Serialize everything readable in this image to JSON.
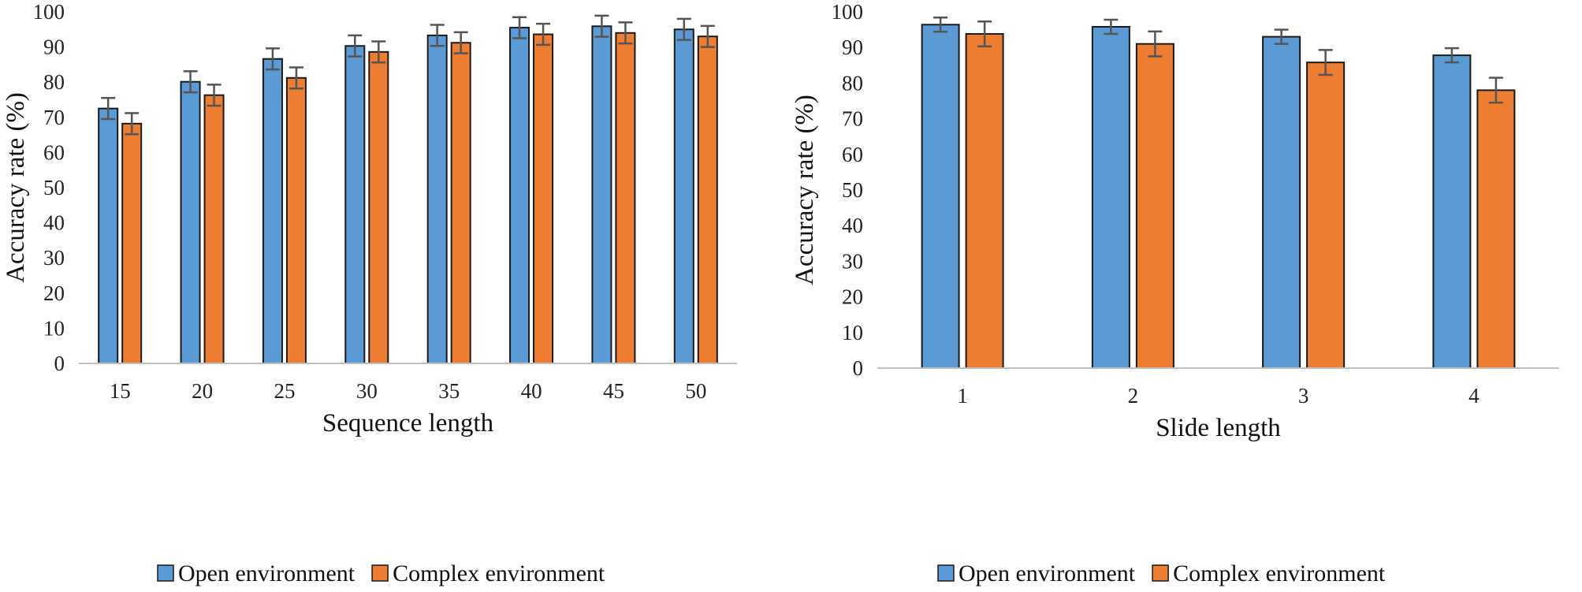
{
  "chart_data": [
    {
      "type": "bar",
      "id": "left",
      "xlabel": "Sequence length",
      "ylabel": "Accuracy rate (%)",
      "ylim": [
        0,
        100
      ],
      "yticks": [
        0,
        10,
        20,
        30,
        40,
        50,
        60,
        70,
        80,
        90,
        100
      ],
      "grid": false,
      "legend_position": "bottom",
      "categories": [
        "15",
        "20",
        "25",
        "30",
        "35",
        "40",
        "45",
        "50"
      ],
      "series": [
        {
          "name": "Open environment",
          "color": "#5B9BD5",
          "values": [
            72.5,
            80.1,
            86.6,
            90.3,
            93.3,
            95.5,
            95.9,
            95.0
          ],
          "errors": [
            3.0,
            3.0,
            3.0,
            3.0,
            3.0,
            3.0,
            3.0,
            3.0
          ]
        },
        {
          "name": "Complex environment",
          "color": "#ED7D31",
          "values": [
            68.2,
            76.3,
            81.2,
            88.6,
            91.2,
            93.6,
            94.0,
            93.0
          ],
          "errors": [
            3.0,
            3.0,
            3.0,
            3.0,
            3.0,
            3.0,
            3.0,
            3.0
          ]
        }
      ]
    },
    {
      "type": "bar",
      "id": "right",
      "xlabel": "Slide length",
      "ylabel": "Accuracy rate (%)",
      "ylim": [
        0,
        100
      ],
      "yticks": [
        0,
        10,
        20,
        30,
        40,
        50,
        60,
        70,
        80,
        90,
        100
      ],
      "grid": false,
      "legend_position": "bottom",
      "categories": [
        "1",
        "2",
        "3",
        "4"
      ],
      "series": [
        {
          "name": "Open environment",
          "color": "#5B9BD5",
          "values": [
            96.4,
            95.8,
            93.0,
            87.8
          ],
          "errors": [
            2.0,
            2.0,
            2.0,
            2.0
          ]
        },
        {
          "name": "Complex environment",
          "color": "#ED7D31",
          "values": [
            93.8,
            91.0,
            85.8,
            78.0
          ],
          "errors": [
            3.5,
            3.5,
            3.5,
            3.5
          ]
        }
      ]
    }
  ]
}
